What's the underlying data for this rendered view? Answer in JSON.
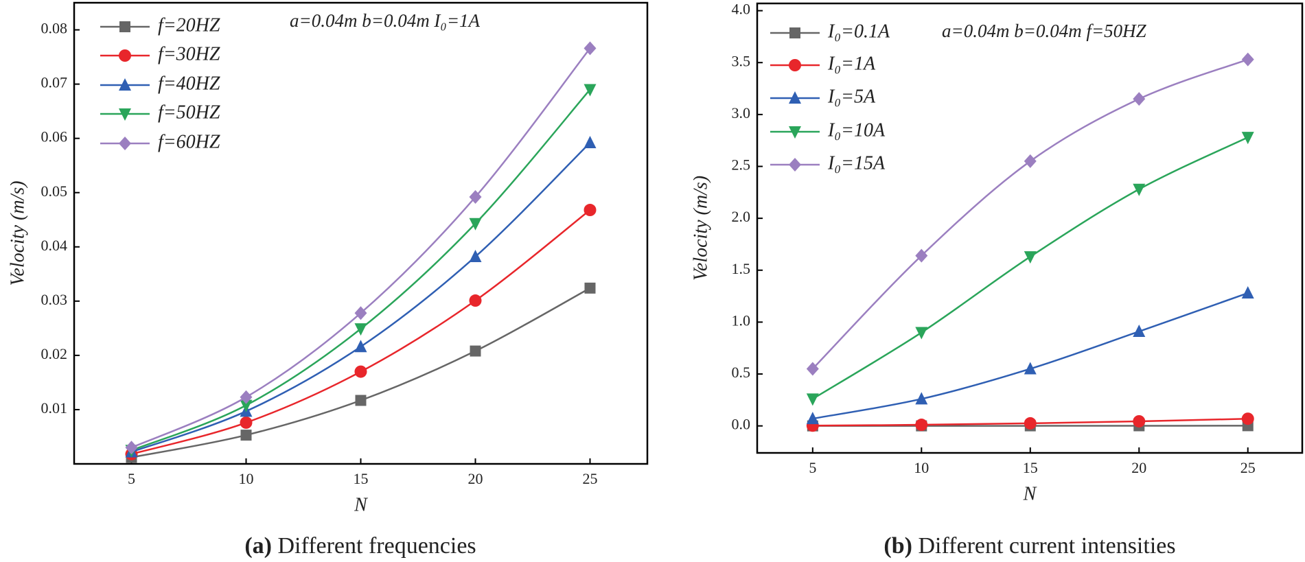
{
  "chart_data": [
    {
      "type": "line",
      "caption_label": "(a)",
      "caption": "Different frequencies",
      "annotation": "a=0.04m b=0.04m I₀=1A",
      "xlabel": "N",
      "ylabel": "Velocity (m/s)",
      "x": [
        5,
        10,
        15,
        20,
        25
      ],
      "xlim": [
        2.5,
        27.5
      ],
      "xticks": [
        5,
        10,
        15,
        20,
        25
      ],
      "ylim": [
        0,
        0.085
      ],
      "yticks": [
        0.01,
        0.02,
        0.03,
        0.04,
        0.05,
        0.06,
        0.07,
        0.08
      ],
      "series": [
        {
          "name": "f=20HZ",
          "color": "#666666",
          "marker": "square",
          "values": [
            0.0012,
            0.0053,
            0.0117,
            0.0208,
            0.0324
          ]
        },
        {
          "name": "f=30HZ",
          "color": "#e8262b",
          "marker": "circle",
          "values": [
            0.0018,
            0.0076,
            0.017,
            0.0301,
            0.0468
          ]
        },
        {
          "name": "f=40HZ",
          "color": "#2f5fb3",
          "marker": "triangle-up",
          "values": [
            0.0022,
            0.0097,
            0.0216,
            0.0382,
            0.0592
          ]
        },
        {
          "name": "f=50HZ",
          "color": "#2aa55a",
          "marker": "triangle-down",
          "values": [
            0.0025,
            0.0108,
            0.0249,
            0.0443,
            0.069
          ]
        },
        {
          "name": "f=60HZ",
          "color": "#9b7fc0",
          "marker": "diamond",
          "values": [
            0.003,
            0.0123,
            0.0278,
            0.0492,
            0.0766
          ]
        }
      ]
    },
    {
      "type": "line",
      "caption_label": "(b)",
      "caption": "Different current intensities",
      "annotation": "a=0.04m b=0.04m f=50HZ",
      "xlabel": "N",
      "ylabel": "Velocity (m/s)",
      "x": [
        5,
        10,
        15,
        20,
        25
      ],
      "xlim": [
        2.45,
        27.5
      ],
      "xticks": [
        5,
        10,
        15,
        20,
        25
      ],
      "ylim": [
        -0.26,
        4.07
      ],
      "yticks": [
        {
          "value": 0,
          "label": "0.0"
        },
        0.5,
        {
          "value": 1,
          "label": "1.0"
        },
        1.5,
        {
          "value": 2,
          "label": "2.0"
        },
        2.5,
        {
          "value": 3,
          "label": "3.0"
        },
        3.5,
        {
          "value": 4,
          "label": "4.0"
        }
      ],
      "series": [
        {
          "name": "I₀=0.1A",
          "color": "#666666",
          "marker": "square",
          "values": [
            0.0001,
            0.0003,
            0.0007,
            0.0012,
            0.0018
          ]
        },
        {
          "name": "I₀=1A",
          "color": "#e8262b",
          "marker": "circle",
          "values": [
            0.0025,
            0.0108,
            0.0249,
            0.0443,
            0.069
          ]
        },
        {
          "name": "I₀=5A",
          "color": "#2f5fb3",
          "marker": "triangle-up",
          "values": [
            0.07,
            0.26,
            0.55,
            0.91,
            1.28
          ]
        },
        {
          "name": "I₀=10A",
          "color": "#2aa55a",
          "marker": "triangle-down",
          "values": [
            0.26,
            0.9,
            1.63,
            2.28,
            2.78
          ]
        },
        {
          "name": "I₀=15A",
          "color": "#9b7fc0",
          "marker": "diamond",
          "values": [
            0.55,
            1.64,
            2.55,
            3.15,
            3.53
          ]
        }
      ]
    }
  ]
}
